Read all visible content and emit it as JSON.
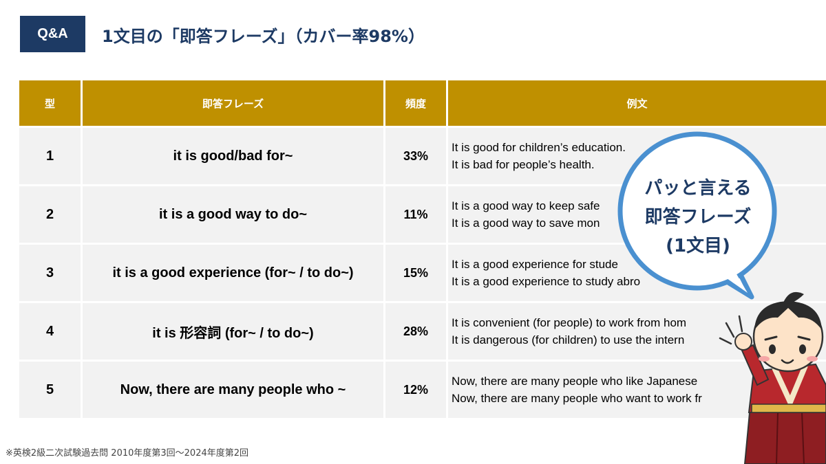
{
  "header": {
    "badge": "Q&A",
    "title": "1文目の「即答フレーズ」（カバー率98%）"
  },
  "table": {
    "columns": [
      "型",
      "即答フレーズ",
      "頻度",
      "例文"
    ],
    "rows": [
      {
        "num": "1",
        "phrase": "it is good/bad for~",
        "freq": "33%",
        "ex1": "It is good for children’s education.",
        "ex2": "It is bad for people’s health."
      },
      {
        "num": "2",
        "phrase": "it is a good way to do~",
        "freq": "11%",
        "ex1": "It is a good way to keep safe",
        "ex2": "It is a good way to save mon"
      },
      {
        "num": "3",
        "phrase": "it is a good experience (for~ / to do~)",
        "freq": "15%",
        "ex1": "It is a good experience for stude",
        "ex2": "It is a good experience to study abro"
      },
      {
        "num": "4",
        "phrase": "it is 形容詞 (for~ / to do~)",
        "freq": "28%",
        "ex1": "It is convenient (for people) to work from hom",
        "ex2": "It is dangerous (for children) to use the intern"
      },
      {
        "num": "5",
        "phrase": "Now, there are many people who ~",
        "freq": "12%",
        "ex1": "Now, there are many people who like Japanese",
        "ex2": "Now, there are many people who want to work fr"
      }
    ]
  },
  "bubble": {
    "line1": "パッと言える",
    "line2": "即答フレーズ",
    "line3": "(1文目)"
  },
  "footnote": "※英検2級二次試験過去問 2010年度第3回〜2024年度第2回",
  "colors": {
    "navy": "#1d3a64",
    "gold": "#bf9000",
    "row_bg": "#f2f2f2",
    "bubble_border": "#4a90d0"
  },
  "icons": {
    "character": "samurai-character-illustration"
  }
}
